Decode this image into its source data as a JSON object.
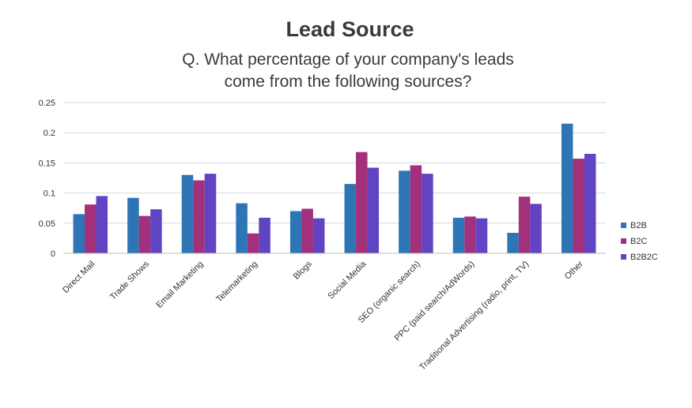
{
  "chart_data": {
    "type": "bar",
    "title": "Lead Source",
    "subtitle": "Q. What percentage of your company's leads come from the following sources?",
    "categories": [
      "Direct Mail",
      "Trade Shows",
      "Email Marketing",
      "Telemarketing",
      "Blogs",
      "Social Media",
      "SEO (organic search)",
      "PPC (paid search/AdWords)",
      "Traditional Advertising (radio, print, TV)",
      "Other"
    ],
    "series": [
      {
        "name": "B2B",
        "color": "#2e75b6",
        "values": [
          0.065,
          0.092,
          0.13,
          0.083,
          0.07,
          0.115,
          0.137,
          0.059,
          0.034,
          0.215
        ]
      },
      {
        "name": "B2C",
        "color": "#a3307a",
        "values": [
          0.081,
          0.062,
          0.121,
          0.033,
          0.074,
          0.168,
          0.146,
          0.061,
          0.094,
          0.157
        ]
      },
      {
        "name": "B2B2C",
        "color": "#6044c4",
        "values": [
          0.095,
          0.073,
          0.132,
          0.059,
          0.058,
          0.142,
          0.132,
          0.058,
          0.082,
          0.165
        ]
      }
    ],
    "ylim": [
      0,
      0.25
    ],
    "yticks": [
      "0",
      "0.05",
      "0.1",
      "0.15",
      "0.2",
      "0.25"
    ],
    "grid": true,
    "legend_position": "right"
  }
}
